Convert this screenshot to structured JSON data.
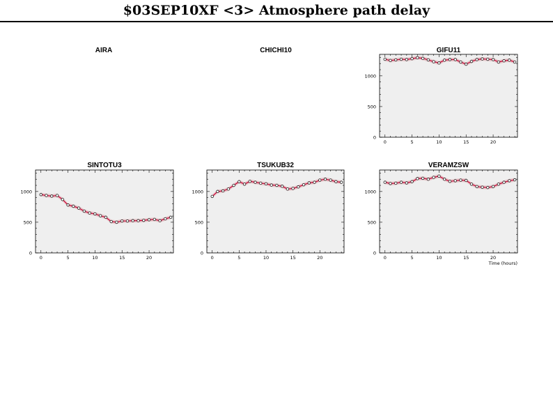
{
  "title": "$03SEP10XF <3>  Atmosphere path delay",
  "chart_data": [
    {
      "type": "line",
      "title": "AIRA",
      "empty": true
    },
    {
      "type": "line",
      "title": "CHICHI10",
      "empty": true
    },
    {
      "type": "line",
      "title": "GIFU11",
      "xlim": [
        -1,
        24.5
      ],
      "ylim": [
        0,
        1350
      ],
      "xticks": [
        0,
        5,
        10,
        15,
        20
      ],
      "yticks": [
        0,
        500,
        1000
      ],
      "x": [
        0,
        1,
        2,
        3,
        4,
        5,
        6,
        7,
        8,
        9,
        10,
        11,
        12,
        13,
        14,
        15,
        16,
        17,
        18,
        19,
        20,
        21,
        22,
        23,
        24
      ],
      "values": [
        1270,
        1250,
        1260,
        1270,
        1265,
        1280,
        1295,
        1285,
        1260,
        1230,
        1210,
        1255,
        1265,
        1265,
        1225,
        1190,
        1235,
        1265,
        1275,
        1270,
        1265,
        1225,
        1245,
        1255,
        1225
      ]
    },
    {
      "type": "line",
      "title": "SINTOTU3",
      "xlim": [
        -1,
        24.5
      ],
      "ylim": [
        0,
        1350
      ],
      "xticks": [
        0,
        5,
        10,
        15,
        20
      ],
      "yticks": [
        0,
        500,
        1000
      ],
      "x": [
        0,
        1,
        2,
        3,
        4,
        5,
        6,
        7,
        8,
        9,
        10,
        11,
        12,
        13,
        14,
        15,
        16,
        17,
        18,
        19,
        20,
        21,
        22,
        23,
        24
      ],
      "values": [
        950,
        935,
        925,
        935,
        870,
        780,
        760,
        730,
        680,
        650,
        635,
        605,
        580,
        510,
        500,
        520,
        520,
        525,
        525,
        530,
        540,
        545,
        525,
        555,
        580
      ]
    },
    {
      "type": "line",
      "title": "TSUKUB32",
      "xlim": [
        -1,
        24.5
      ],
      "ylim": [
        0,
        1350
      ],
      "xticks": [
        0,
        5,
        10,
        15,
        20
      ],
      "yticks": [
        0,
        500,
        1000
      ],
      "x": [
        0,
        1,
        2,
        3,
        4,
        5,
        6,
        7,
        8,
        9,
        10,
        11,
        12,
        13,
        14,
        15,
        16,
        17,
        18,
        19,
        20,
        21,
        22,
        23,
        24
      ],
      "values": [
        920,
        1000,
        1010,
        1040,
        1100,
        1160,
        1120,
        1165,
        1150,
        1135,
        1125,
        1105,
        1100,
        1085,
        1040,
        1050,
        1075,
        1110,
        1140,
        1150,
        1185,
        1200,
        1185,
        1160,
        1150
      ]
    },
    {
      "type": "line",
      "title": "VERAMZSW",
      "xlim": [
        -1,
        24.5
      ],
      "ylim": [
        0,
        1350
      ],
      "xticks": [
        0,
        5,
        10,
        15,
        20
      ],
      "yticks": [
        0,
        500,
        1000
      ],
      "xlabel": "Time (hours)",
      "x": [
        0,
        1,
        2,
        3,
        4,
        5,
        6,
        7,
        8,
        9,
        10,
        11,
        12,
        13,
        14,
        15,
        16,
        17,
        18,
        19,
        20,
        21,
        22,
        23,
        24
      ],
      "values": [
        1150,
        1130,
        1135,
        1150,
        1140,
        1160,
        1210,
        1215,
        1200,
        1230,
        1250,
        1200,
        1165,
        1175,
        1185,
        1180,
        1120,
        1080,
        1070,
        1065,
        1080,
        1120,
        1150,
        1175,
        1190
      ]
    }
  ],
  "colors": {
    "line": "#cc0033",
    "band": "#e6c4c8",
    "panel_bg": "#efefef",
    "marker_fill": "#ffffff"
  }
}
